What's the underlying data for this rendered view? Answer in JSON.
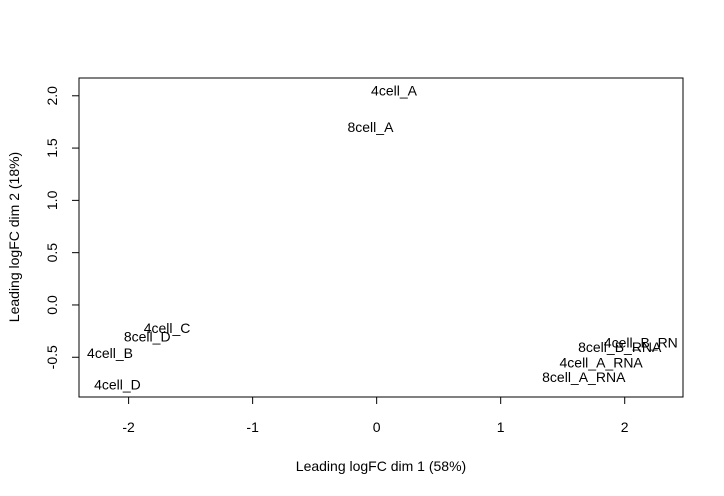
{
  "chart_data": {
    "type": "scatter",
    "title": "",
    "xlabel": "Leading logFC dim 1 (58%)",
    "ylabel": "Leading logFC dim 2 (18%)",
    "xlim": [
      -2.4,
      2.47
    ],
    "ylim": [
      -0.88,
      2.17
    ],
    "x_ticks": [
      -2,
      -1,
      0,
      1,
      2
    ],
    "x_tick_labels": [
      "-2",
      "-1",
      "0",
      "1",
      "2"
    ],
    "y_ticks": [
      -0.5,
      0.0,
      0.5,
      1.0,
      1.5,
      2.0
    ],
    "y_tick_labels": [
      "-0.5",
      "0.0",
      "0.5",
      "1.0",
      "1.5",
      "2.0"
    ],
    "grid": false,
    "points": [
      {
        "label": "4cell_A",
        "x": 0.14,
        "y": 2.05
      },
      {
        "label": "8cell_A",
        "x": -0.05,
        "y": 1.7
      },
      {
        "label": "4cell_C",
        "x": -1.69,
        "y": -0.22
      },
      {
        "label": "8cell_D",
        "x": -1.85,
        "y": -0.3
      },
      {
        "label": "4cell_B",
        "x": -2.15,
        "y": -0.46
      },
      {
        "label": "4cell_D",
        "x": -2.09,
        "y": -0.76
      },
      {
        "label": "4cell_B_RN",
        "x": 2.13,
        "y": -0.36
      },
      {
        "label": "8cell_B_RNA",
        "x": 1.96,
        "y": -0.4
      },
      {
        "label": "4cell_A_RNA",
        "x": 1.81,
        "y": -0.55
      },
      {
        "label": "8cell_A_RNA",
        "x": 1.67,
        "y": -0.69
      }
    ]
  }
}
